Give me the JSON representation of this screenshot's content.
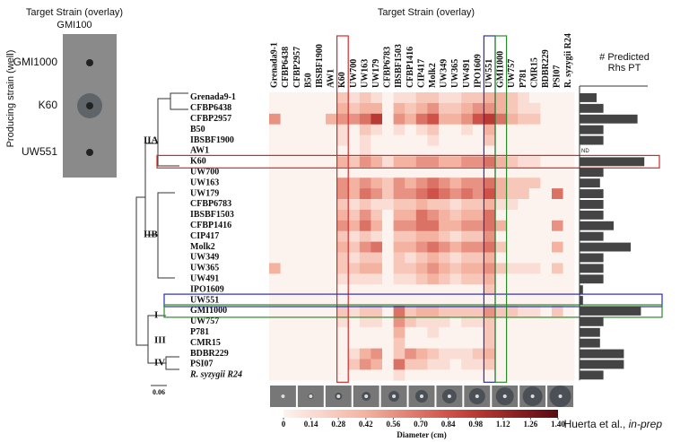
{
  "chart_data": [
    {
      "type": "heatmap",
      "title": "Target Strain (overlay)",
      "strains": [
        "Grenada9-1",
        "CFBP6438",
        "CFBP2957",
        "B50",
        "IBSBF1900",
        "AW1",
        "K60",
        "UW700",
        "UW163",
        "UW179",
        "CFBP6783",
        "IBSBF1503",
        "CFBP1416",
        "CIP417",
        "Molk2",
        "UW349",
        "UW365",
        "UW491",
        "IPO1609",
        "UW551",
        "GMI1000",
        "UW757",
        "P781",
        "CMR15",
        "BDBR229",
        "PSI07",
        "R. syzygii R24"
      ],
      "values": [
        [
          0,
          0,
          0,
          0,
          0,
          0,
          0.28,
          0.14,
          0.28,
          0.14,
          0,
          0.14,
          0.14,
          0.28,
          0.28,
          0.14,
          0.14,
          0.28,
          0.28,
          0.42,
          0.42,
          0.28,
          0.14,
          0,
          0,
          0,
          0
        ],
        [
          0,
          0,
          0,
          0,
          0,
          0,
          0.42,
          0.28,
          0.42,
          0.42,
          0,
          0.42,
          0.28,
          0.42,
          0.56,
          0.28,
          0.28,
          0.42,
          0.56,
          0.56,
          0.42,
          0.28,
          0.14,
          0.14,
          0,
          0,
          0
        ],
        [
          0.56,
          0,
          0,
          0,
          0,
          0.42,
          0.56,
          0.56,
          0.7,
          0.98,
          0,
          0.56,
          0.42,
          0.7,
          0.84,
          0.42,
          0.42,
          0.56,
          0.84,
          0.98,
          0.7,
          0.42,
          0.28,
          0.28,
          0,
          0,
          0
        ],
        [
          0,
          0,
          0,
          0,
          0,
          0,
          0.14,
          0,
          0.28,
          0.14,
          0,
          0.14,
          0,
          0.14,
          0.28,
          0,
          0,
          0.14,
          0,
          0.42,
          0,
          0,
          0,
          0,
          0,
          0,
          0
        ],
        [
          0,
          0,
          0,
          0,
          0,
          0,
          0.14,
          0,
          0.14,
          0,
          0,
          0,
          0,
          0,
          0.14,
          0,
          0,
          0,
          0,
          0.28,
          0,
          0,
          0,
          0,
          0,
          0,
          0
        ],
        [
          0,
          0,
          0,
          0,
          0,
          0,
          0,
          0,
          0.14,
          0,
          0,
          0,
          0,
          0,
          0,
          0,
          0,
          0,
          0,
          0,
          0,
          0,
          0,
          0,
          0,
          0,
          0
        ],
        [
          0,
          0,
          0,
          0,
          0,
          0,
          0.42,
          0.28,
          0.56,
          0.42,
          0.14,
          0.42,
          0.42,
          0.56,
          0.56,
          0.42,
          0.42,
          0.56,
          0.56,
          0.7,
          0.42,
          0.28,
          0.14,
          0.14,
          0,
          0,
          0
        ],
        [
          0,
          0,
          0,
          0,
          0,
          0,
          0,
          0,
          0,
          0,
          0,
          0,
          0,
          0,
          0,
          0,
          0,
          0,
          0,
          0,
          0,
          0,
          0,
          0,
          0,
          0,
          0
        ],
        [
          0,
          0,
          0,
          0,
          0,
          0,
          0.56,
          0.42,
          0.56,
          0.42,
          0.28,
          0.56,
          0.42,
          0.56,
          0.7,
          0.56,
          0.42,
          0.56,
          0.56,
          0.7,
          0.42,
          0.28,
          0.28,
          0.28,
          0,
          0,
          0
        ],
        [
          0,
          0,
          0,
          0,
          0,
          0,
          0.56,
          0.42,
          0.7,
          0.56,
          0.28,
          0.56,
          0.56,
          0.7,
          0.84,
          0.7,
          0.56,
          0.7,
          0.56,
          0.84,
          0.42,
          0.28,
          0.28,
          0,
          0,
          0.7,
          0
        ],
        [
          0,
          0,
          0,
          0,
          0,
          0,
          0.28,
          0.14,
          0.28,
          0.14,
          0.14,
          0.28,
          0.28,
          0.42,
          0.28,
          0.28,
          0.14,
          0.28,
          0.28,
          0.42,
          0.14,
          0.14,
          0,
          0,
          0,
          0,
          0
        ],
        [
          0,
          0,
          0,
          0,
          0,
          0,
          0.42,
          0.28,
          0.56,
          0.28,
          0,
          0.42,
          0.42,
          0.7,
          0.56,
          0.42,
          0.28,
          0.42,
          0.42,
          0.7,
          0,
          0,
          0,
          0,
          0,
          0,
          0
        ],
        [
          0,
          0,
          0,
          0,
          0,
          0,
          0.56,
          0.42,
          0.7,
          0.42,
          0,
          0.56,
          0.56,
          0.7,
          0.7,
          0.42,
          0.42,
          0.56,
          0.56,
          0.7,
          0.42,
          0,
          0,
          0,
          0,
          0.56,
          0
        ],
        [
          0,
          0,
          0,
          0,
          0,
          0,
          0.28,
          0.14,
          0.28,
          0.14,
          0,
          0.28,
          0.28,
          0.42,
          0.42,
          0.28,
          0.14,
          0.28,
          0.28,
          0.56,
          0,
          0,
          0,
          0,
          0,
          0,
          0
        ],
        [
          0,
          0,
          0,
          0,
          0,
          0,
          0.42,
          0.28,
          0.56,
          0.7,
          0,
          0.42,
          0.42,
          0.56,
          0.7,
          0.56,
          0.42,
          0.56,
          0.56,
          0.7,
          0.28,
          0,
          0,
          0,
          0,
          0.42,
          0
        ],
        [
          0,
          0,
          0,
          0,
          0,
          0,
          0.28,
          0.14,
          0.28,
          0.28,
          0,
          0.28,
          0.14,
          0.28,
          0.42,
          0.28,
          0.14,
          0.28,
          0.28,
          0.42,
          0,
          0,
          0,
          0,
          0,
          0,
          0
        ],
        [
          0.42,
          0,
          0,
          0,
          0,
          0,
          0.28,
          0.28,
          0.42,
          0.42,
          0,
          0.28,
          0.28,
          0.42,
          0.56,
          0.42,
          0.28,
          0.42,
          0.42,
          0.56,
          0.28,
          0.14,
          0.14,
          0.14,
          0,
          0.28,
          0
        ],
        [
          0,
          0,
          0,
          0,
          0,
          0,
          0.14,
          0.14,
          0.14,
          0.14,
          0,
          0.14,
          0.14,
          0.28,
          0.42,
          0.28,
          0.14,
          0.28,
          0.28,
          0.42,
          0,
          0,
          0,
          0,
          0,
          0,
          0
        ],
        [
          0,
          0,
          0,
          0,
          0,
          0,
          0,
          0,
          0,
          0,
          0,
          0,
          0,
          0,
          0,
          0,
          0,
          0,
          0,
          0.28,
          0,
          0,
          0,
          0,
          0,
          0,
          0
        ],
        [
          0,
          0,
          0,
          0,
          0,
          0,
          0,
          0,
          0,
          0,
          0,
          0,
          0,
          0,
          0,
          0,
          0,
          0,
          0,
          0,
          0,
          0,
          0,
          0,
          0,
          0,
          0
        ],
        [
          0,
          0,
          0,
          0,
          0,
          0,
          0.28,
          0.14,
          0.28,
          0.28,
          0,
          0.7,
          0.28,
          0.42,
          0.42,
          0.28,
          0.28,
          0.28,
          0.28,
          0.56,
          0.28,
          0.28,
          0.14,
          0.14,
          0,
          0.28,
          0
        ],
        [
          0,
          0,
          0,
          0,
          0,
          0,
          0.14,
          0,
          0.14,
          0.14,
          0,
          0.56,
          0.28,
          0.14,
          0.14,
          0.14,
          0,
          0.14,
          0.14,
          0.28,
          0,
          0,
          0,
          0,
          0,
          0,
          0
        ],
        [
          0,
          0,
          0,
          0,
          0,
          0,
          0,
          0,
          0,
          0,
          0,
          0.42,
          0,
          0,
          0.14,
          0,
          0,
          0,
          0,
          0.28,
          0,
          0,
          0,
          0,
          0,
          0,
          0
        ],
        [
          0,
          0,
          0,
          0,
          0,
          0,
          0,
          0,
          0,
          0,
          0,
          0.28,
          0,
          0,
          0,
          0,
          0,
          0,
          0,
          0.28,
          0,
          0,
          0,
          0,
          0,
          0,
          0
        ],
        [
          0,
          0,
          0,
          0,
          0,
          0,
          0,
          0.14,
          0.42,
          0.56,
          0,
          0.28,
          0.56,
          0.42,
          0.28,
          0.14,
          0.14,
          0.14,
          0.28,
          0.42,
          0,
          0,
          0,
          0,
          0,
          0,
          0
        ],
        [
          0,
          0,
          0,
          0,
          0,
          0,
          0,
          0.28,
          0.56,
          0.42,
          0,
          0.7,
          0.28,
          0.28,
          0.14,
          0.14,
          0,
          0.14,
          0.14,
          0.28,
          0,
          0,
          0,
          0,
          0,
          0,
          0
        ],
        [
          0,
          0,
          0,
          0,
          0,
          0,
          0,
          0,
          0,
          0,
          0,
          0.14,
          0,
          0,
          0,
          0,
          0,
          0,
          0,
          0,
          0,
          0,
          0,
          0,
          0,
          0,
          0
        ]
      ],
      "clim": [
        0,
        1.4
      ],
      "colorbar_ticks": [
        0,
        0.14,
        0.28,
        0.42,
        0.56,
        {
          "value": 0.7,
          "label": "0.70"
        },
        0.84,
        0.98,
        1.12,
        1.26,
        {
          "value": 1.4,
          "label": "1.40"
        }
      ],
      "colorbar_label": "Diameter (cm)",
      "clades": [
        "IIA",
        "IIB",
        "I",
        "III",
        "IV"
      ],
      "tree_scale": "0.06",
      "inset_title": "Target Strain (overlay)",
      "inset_subtitle": "GMI100",
      "inset_axis_label": "Producing strain (well)",
      "inset_rows": [
        "GMI1000",
        "K60",
        "UW551"
      ],
      "citation": [
        "Huerta et al., ",
        "in-prep"
      ]
    },
    {
      "type": "bar",
      "orientation": "horizontal",
      "title": [
        "# Predicted",
        "Rhs PT"
      ],
      "color": "#444444",
      "values": [
        2.5,
        3.5,
        8.5,
        3.5,
        3.5,
        null,
        9.5,
        3.5,
        3,
        3.5,
        3.5,
        3.5,
        5,
        3.5,
        7.5,
        3.5,
        3.5,
        3.5,
        0.5,
        0.5,
        9,
        3.5,
        3,
        3,
        6.5,
        6.5,
        3.5
      ],
      "value_labels": [
        null,
        null,
        null,
        null,
        null,
        "ND",
        null,
        null,
        null,
        null,
        null,
        null,
        null,
        null,
        null,
        null,
        null,
        null,
        null,
        null,
        null,
        null,
        null,
        null,
        null,
        null,
        null
      ],
      "xlim": [
        0,
        10
      ]
    }
  ]
}
